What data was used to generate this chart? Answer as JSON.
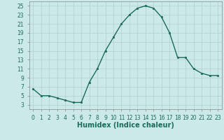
{
  "x": [
    0,
    1,
    2,
    3,
    4,
    5,
    6,
    7,
    8,
    9,
    10,
    11,
    12,
    13,
    14,
    15,
    16,
    17,
    18,
    19,
    20,
    21,
    22,
    23
  ],
  "y": [
    6.5,
    5.0,
    5.0,
    4.5,
    4.0,
    3.5,
    3.5,
    8.0,
    11.0,
    15.0,
    18.0,
    21.0,
    23.0,
    24.5,
    25.0,
    24.5,
    22.5,
    19.0,
    13.5,
    13.5,
    11.0,
    10.0,
    9.5,
    9.5
  ],
  "line_color": "#1a6b5a",
  "marker": "s",
  "markersize": 2.0,
  "linewidth": 1.0,
  "bg_color": "#cce9e9",
  "grid_color": "#b0cfcf",
  "xlabel": "Humidex (Indice chaleur)",
  "xlim": [
    -0.5,
    23.5
  ],
  "ylim": [
    2,
    26
  ],
  "yticks": [
    3,
    5,
    7,
    9,
    11,
    13,
    15,
    17,
    19,
    21,
    23,
    25
  ],
  "xticks": [
    0,
    1,
    2,
    3,
    4,
    5,
    6,
    7,
    8,
    9,
    10,
    11,
    12,
    13,
    14,
    15,
    16,
    17,
    18,
    19,
    20,
    21,
    22,
    23
  ],
  "tick_label_fontsize": 5.5,
  "xlabel_fontsize": 7.0,
  "tick_color": "#1a6b5a",
  "spine_color": "#888888"
}
